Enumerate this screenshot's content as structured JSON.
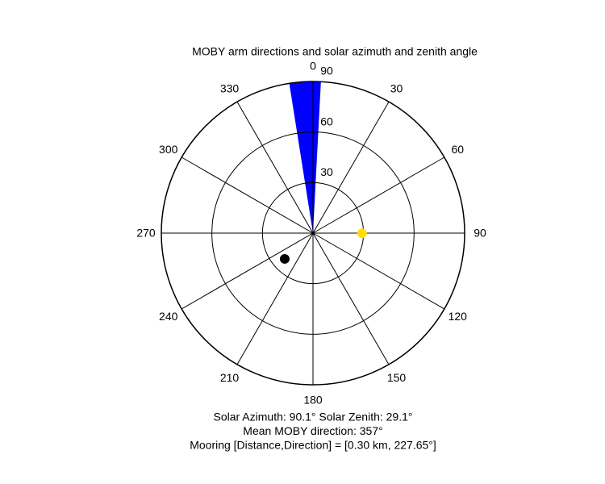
{
  "chart_data": {
    "type": "polar",
    "title": "MOBY arm directions and solar azimuth and zenith angle",
    "theta_zero": "N",
    "theta_direction": "clockwise",
    "thetaticks": [
      0,
      30,
      60,
      90,
      120,
      150,
      180,
      210,
      240,
      270,
      300,
      330
    ],
    "rlim": [
      0,
      90
    ],
    "rticks": [
      30,
      60,
      90
    ],
    "wedge": {
      "theta": [
        351,
        3
      ],
      "r": 90,
      "color": "#0000ff"
    },
    "points": [
      {
        "theta": 90.1,
        "r": 29.1,
        "color": "#ffe000"
      },
      {
        "theta": 227.65,
        "r": 22.7,
        "color": "#000000"
      }
    ],
    "annotations": [
      "Solar Azimuth: 90.1°   Solar Zenith: 29.1°",
      "Mean MOBY direction: 357°",
      "Mooring [Distance,Direction] = [0.30 km, 227.65°]"
    ]
  }
}
